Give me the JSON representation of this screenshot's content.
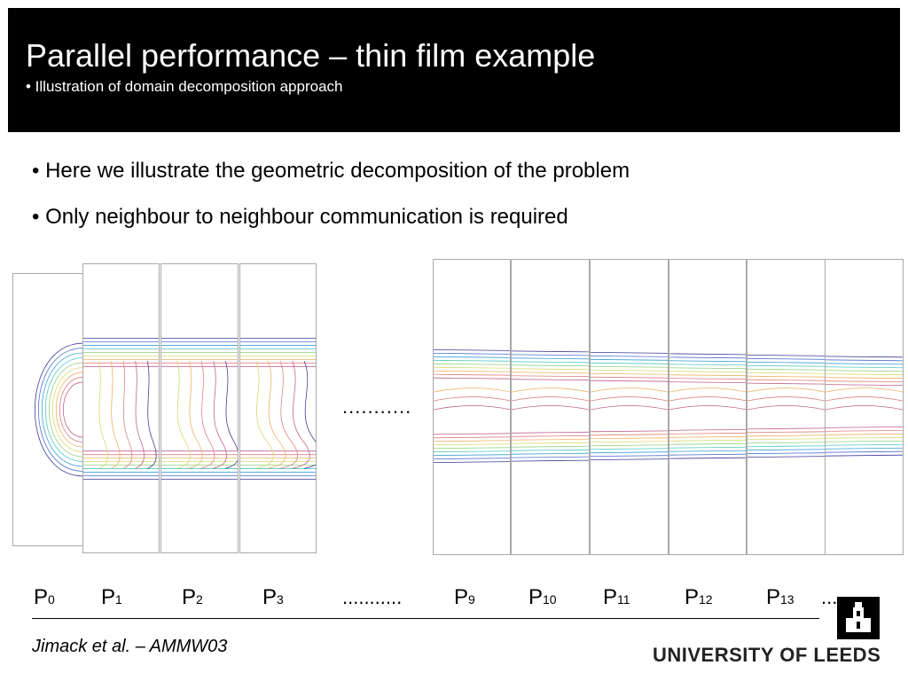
{
  "header": {
    "title": "Parallel performance – thin film example",
    "subtitle": "• Illustration of domain decomposition approach"
  },
  "bullets": [
    "• Here we illustrate the geometric decomposition of the problem",
    "• Only neighbour to neighbour communication is required"
  ],
  "diagram": {
    "gap_label": "...........",
    "processors": [
      {
        "p": "P",
        "n": "0"
      },
      {
        "p": "P",
        "n": "1"
      },
      {
        "p": "P",
        "n": "2"
      },
      {
        "p": "P",
        "n": "3"
      },
      {
        "p": "...........",
        "n": ""
      },
      {
        "p": "P",
        "n": "9"
      },
      {
        "p": "P",
        "n": "10"
      },
      {
        "p": "P",
        "n": "11"
      },
      {
        "p": "P",
        "n": "12"
      },
      {
        "p": "P",
        "n": "13"
      },
      {
        "p": "...",
        "n": ""
      }
    ],
    "contour_colors": [
      "#3b3b9a",
      "#4f6fd0",
      "#3aa0d8",
      "#4fc7c2",
      "#8fd07a",
      "#d8d86a",
      "#f0b060",
      "#e08080",
      "#c06090"
    ]
  },
  "footer": {
    "citation": "Jimack et al. – AMMW03",
    "university": "UNIVERSITY OF LEEDS"
  }
}
